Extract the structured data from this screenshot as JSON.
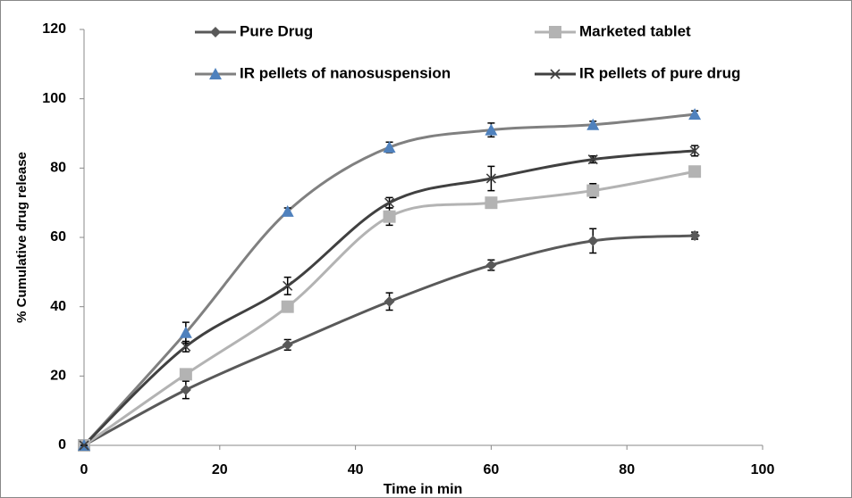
{
  "chart_data": {
    "type": "line",
    "xlabel": "Time in min",
    "ylabel": "% Cumulative drug release",
    "x": [
      0,
      15,
      30,
      45,
      60,
      75,
      90
    ],
    "xlim": [
      0,
      100
    ],
    "xticks": [
      0,
      20,
      40,
      60,
      80,
      100
    ],
    "ylim": [
      0,
      120
    ],
    "yticks": [
      0,
      20,
      40,
      60,
      80,
      100,
      120
    ],
    "grid": false,
    "smooth": true,
    "series": [
      {
        "name": "Pure Drug",
        "color": "#595959",
        "marker_color": "#595959",
        "marker": "diamond",
        "values": [
          0,
          16,
          29,
          41.5,
          52,
          59,
          60.5
        ],
        "errors": [
          0,
          2.5,
          1.5,
          2.5,
          1.5,
          3.5,
          1
        ]
      },
      {
        "name": "Marketed tablet",
        "color": "#b3b3b3",
        "marker_color": "#b3b3b3",
        "marker": "square",
        "values": [
          0,
          20.5,
          40,
          66,
          70,
          73.5,
          79
        ],
        "errors": [
          0,
          1,
          1,
          2.5,
          1.5,
          2,
          1
        ]
      },
      {
        "name": "IR pellets of nanosuspension",
        "color": "#808080",
        "marker_color": "#4f81bd",
        "marker": "triangle",
        "values": [
          0,
          32.5,
          67.5,
          86,
          91,
          92.5,
          95.5
        ],
        "errors": [
          0,
          3,
          1,
          1.5,
          2,
          1,
          1
        ]
      },
      {
        "name": "IR pellets of pure drug",
        "color": "#404040",
        "marker_color": "#404040",
        "marker": "x",
        "values": [
          0,
          28.5,
          46,
          70,
          77,
          82.5,
          85
        ],
        "errors": [
          0,
          1.5,
          2.5,
          1.5,
          3.5,
          1,
          1.5
        ]
      }
    ]
  }
}
